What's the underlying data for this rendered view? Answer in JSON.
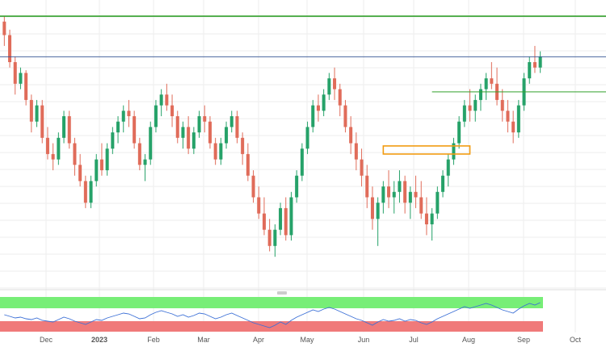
{
  "chart_data": {
    "type": "candlestick",
    "title": "",
    "xlabel": "",
    "ylabel": "",
    "x_tick_labels": [
      "Dec",
      "2023",
      "Feb",
      "Mar",
      "Apr",
      "May",
      "Jun",
      "Jul",
      "Aug",
      "Sep",
      "Oct"
    ],
    "ylim": [
      0,
      100
    ],
    "grid": true,
    "colors": {
      "up": "#26a269",
      "down": "#e06c5a",
      "resistance": "#33a02c",
      "level": "#2f4f8f",
      "zone": "#f29b11",
      "rsi_line": "#3b6fd6",
      "rsi_upper": "#77ee77",
      "rsi_lower": "#f07a7a"
    },
    "series": [
      {
        "kind": "ohlc",
        "values": [
          [
            95,
            97,
            86,
            90
          ],
          [
            90,
            92,
            78,
            80
          ],
          [
            80,
            82,
            68,
            72
          ],
          [
            72,
            78,
            70,
            76
          ],
          [
            76,
            77,
            64,
            66
          ],
          [
            66,
            68,
            54,
            58
          ],
          [
            58,
            66,
            56,
            64
          ],
          [
            64,
            66,
            50,
            52
          ],
          [
            52,
            56,
            44,
            46
          ],
          [
            46,
            50,
            40,
            44
          ],
          [
            44,
            54,
            42,
            52
          ],
          [
            52,
            62,
            50,
            60
          ],
          [
            60,
            62,
            48,
            50
          ],
          [
            50,
            52,
            38,
            42
          ],
          [
            42,
            46,
            34,
            36
          ],
          [
            36,
            38,
            26,
            28
          ],
          [
            28,
            38,
            26,
            36
          ],
          [
            36,
            46,
            34,
            44
          ],
          [
            44,
            50,
            38,
            40
          ],
          [
            40,
            50,
            38,
            48
          ],
          [
            48,
            56,
            46,
            54
          ],
          [
            54,
            60,
            50,
            58
          ],
          [
            58,
            64,
            54,
            62
          ],
          [
            62,
            66,
            56,
            60
          ],
          [
            60,
            62,
            48,
            50
          ],
          [
            50,
            52,
            40,
            42
          ],
          [
            42,
            46,
            36,
            44
          ],
          [
            44,
            58,
            42,
            56
          ],
          [
            56,
            66,
            54,
            64
          ],
          [
            64,
            70,
            60,
            68
          ],
          [
            68,
            72,
            62,
            64
          ],
          [
            64,
            68,
            56,
            60
          ],
          [
            60,
            62,
            50,
            52
          ],
          [
            52,
            58,
            48,
            56
          ],
          [
            56,
            60,
            46,
            48
          ],
          [
            48,
            56,
            46,
            54
          ],
          [
            54,
            62,
            52,
            60
          ],
          [
            60,
            64,
            54,
            58
          ],
          [
            58,
            60,
            48,
            50
          ],
          [
            50,
            52,
            42,
            44
          ],
          [
            44,
            52,
            42,
            50
          ],
          [
            50,
            58,
            48,
            56
          ],
          [
            56,
            62,
            54,
            60
          ],
          [
            60,
            62,
            50,
            52
          ],
          [
            52,
            54,
            42,
            46
          ],
          [
            46,
            50,
            36,
            38
          ],
          [
            38,
            40,
            28,
            30
          ],
          [
            30,
            34,
            22,
            24
          ],
          [
            24,
            30,
            16,
            18
          ],
          [
            18,
            22,
            10,
            12
          ],
          [
            12,
            20,
            8,
            18
          ],
          [
            18,
            28,
            16,
            26
          ],
          [
            26,
            30,
            14,
            16
          ],
          [
            16,
            32,
            14,
            30
          ],
          [
            30,
            40,
            28,
            38
          ],
          [
            38,
            50,
            36,
            48
          ],
          [
            48,
            58,
            46,
            56
          ],
          [
            56,
            66,
            54,
            64
          ],
          [
            64,
            68,
            58,
            62
          ],
          [
            62,
            70,
            60,
            68
          ],
          [
            68,
            76,
            66,
            74
          ],
          [
            74,
            78,
            66,
            70
          ],
          [
            70,
            72,
            60,
            64
          ],
          [
            64,
            66,
            54,
            56
          ],
          [
            56,
            60,
            46,
            50
          ],
          [
            50,
            54,
            40,
            44
          ],
          [
            44,
            48,
            34,
            38
          ],
          [
            38,
            42,
            26,
            30
          ],
          [
            30,
            34,
            18,
            22
          ],
          [
            22,
            30,
            12,
            28
          ],
          [
            28,
            36,
            24,
            34
          ],
          [
            34,
            40,
            26,
            30
          ],
          [
            30,
            36,
            24,
            32
          ],
          [
            32,
            40,
            28,
            36
          ],
          [
            36,
            38,
            24,
            28
          ],
          [
            28,
            34,
            22,
            32
          ],
          [
            32,
            38,
            26,
            30
          ],
          [
            30,
            36,
            22,
            24
          ],
          [
            24,
            30,
            16,
            20
          ],
          [
            20,
            26,
            14,
            24
          ],
          [
            24,
            34,
            22,
            32
          ],
          [
            32,
            40,
            30,
            38
          ],
          [
            38,
            46,
            34,
            44
          ],
          [
            44,
            52,
            42,
            50
          ],
          [
            50,
            60,
            48,
            58
          ],
          [
            58,
            66,
            56,
            64
          ],
          [
            64,
            70,
            58,
            62
          ],
          [
            62,
            68,
            58,
            66
          ],
          [
            66,
            72,
            62,
            70
          ],
          [
            70,
            76,
            66,
            74
          ],
          [
            74,
            80,
            70,
            72
          ],
          [
            72,
            78,
            64,
            66
          ],
          [
            66,
            70,
            58,
            62
          ],
          [
            62,
            66,
            54,
            58
          ],
          [
            58,
            62,
            50,
            54
          ],
          [
            54,
            66,
            52,
            64
          ],
          [
            64,
            76,
            62,
            74
          ],
          [
            74,
            82,
            72,
            80
          ],
          [
            80,
            86,
            76,
            78
          ],
          [
            78,
            84,
            76,
            82
          ]
        ]
      },
      {
        "kind": "line",
        "panel": "rsi",
        "values": [
          50,
          48,
          46,
          47,
          45,
          44,
          46,
          43,
          42,
          41,
          44,
          47,
          45,
          42,
          40,
          38,
          41,
          44,
          43,
          46,
          48,
          50,
          52,
          51,
          48,
          45,
          46,
          50,
          53,
          55,
          53,
          51,
          48,
          50,
          47,
          49,
          52,
          51,
          48,
          45,
          47,
          50,
          52,
          49,
          46,
          43,
          40,
          38,
          36,
          34,
          37,
          41,
          38,
          43,
          47,
          50,
          53,
          56,
          54,
          57,
          59,
          57,
          54,
          51,
          48,
          45,
          43,
          40,
          37,
          41,
          44,
          42,
          43,
          45,
          42,
          44,
          43,
          40,
          38,
          41,
          45,
          48,
          51,
          54,
          57,
          60,
          58,
          60,
          62,
          64,
          62,
          59,
          56,
          54,
          52,
          57,
          61,
          64,
          62,
          65
        ]
      }
    ],
    "annotations": [
      {
        "kind": "hline",
        "label": "",
        "y": 97
      },
      {
        "kind": "hline",
        "label": "",
        "y": 82
      },
      {
        "kind": "ray",
        "label": "",
        "y": 69,
        "from_index": 79
      },
      {
        "kind": "zone",
        "label": "",
        "y_low": 46,
        "y_high": 49,
        "from_index": 70,
        "to_index": 86
      }
    ]
  }
}
